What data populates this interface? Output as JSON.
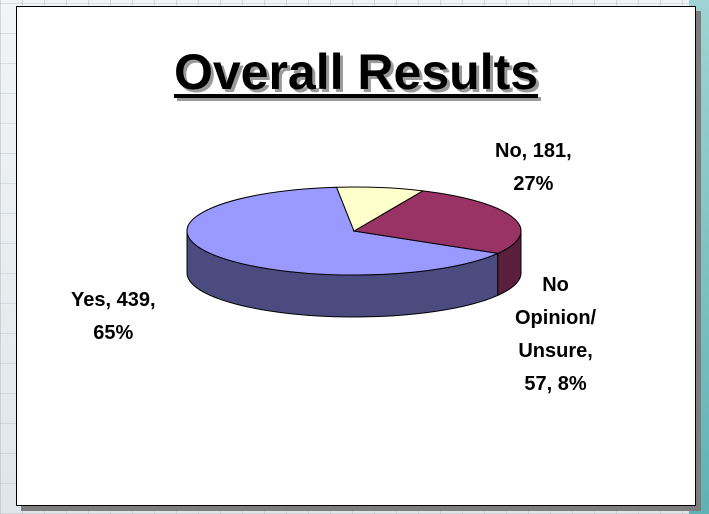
{
  "chart_data": {
    "type": "pie",
    "title": "Overall Results",
    "slices": [
      {
        "label": "Yes",
        "count": 439,
        "percent": 65,
        "text": [
          "Yes, 439,",
          "65%"
        ],
        "top": "#9999ff",
        "side": "#4b4b80"
      },
      {
        "label": "No",
        "count": 181,
        "percent": 27,
        "text": [
          "No, 181,",
          "27%"
        ],
        "top": "#993366",
        "side": "#5a1f3c"
      },
      {
        "label": "No Opinion/ Unsure",
        "count": 57,
        "percent": 8,
        "text": [
          "No",
          "Opinion/",
          "Unsure,",
          "57, 8%"
        ],
        "top": "#ffffcc",
        "side": "#7f7f66"
      }
    ]
  }
}
